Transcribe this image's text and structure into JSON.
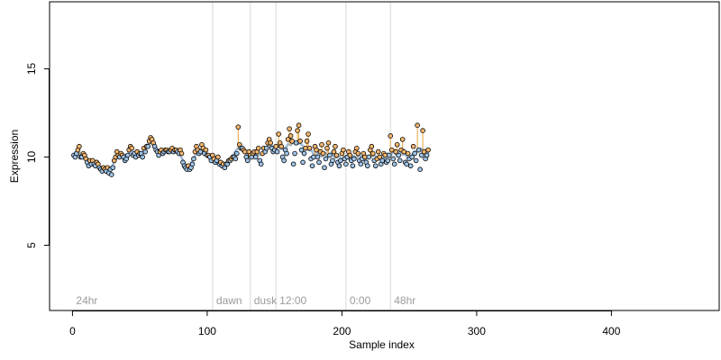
{
  "chart_data": {
    "type": "scatter",
    "title": "",
    "xlabel": "Sample index",
    "ylabel": "Expression",
    "xlim": [
      -17,
      480
    ],
    "ylim": [
      1.3,
      18.8
    ],
    "x_ticks": [
      0,
      100,
      200,
      300,
      400
    ],
    "y_ticks": [
      5,
      10,
      15
    ],
    "grid": false,
    "legend": "none",
    "colors": {
      "plot_border": "#000000",
      "region_line": "#d9d9d9",
      "region_label": "#9a9a9a",
      "fit_line": "#9db9d9",
      "residual_line": "#e8a33a",
      "point_above_fill": "#f2b56e",
      "point_below_fill": "#9fc3e6",
      "point_stroke": "#000000"
    },
    "regions": [
      {
        "x": 0,
        "label": "24hr",
        "show_line": false
      },
      {
        "x": 104,
        "label": "dawn",
        "show_line": true
      },
      {
        "x": 132,
        "label": "dusk",
        "show_line": true
      },
      {
        "x": 151,
        "label": "12:00",
        "show_line": true
      },
      {
        "x": 203,
        "label": "0:00",
        "show_line": true
      },
      {
        "x": 236,
        "label": "48hr",
        "show_line": true
      }
    ],
    "series": [
      {
        "values": [
          10.1,
          10.0,
          10.2,
          10.4,
          10.6,
          10.0,
          10.0,
          10.2,
          10.1,
          9.9,
          9.7,
          9.5,
          9.8,
          9.6,
          9.8,
          9.6,
          9.5,
          9.7,
          9.6,
          9.4,
          9.3,
          9.2,
          9.4,
          9.3,
          9.2,
          9.4,
          9.1,
          9.3,
          9.0,
          9.4,
          9.8,
          10.0,
          10.3,
          10.1,
          10.0,
          10.2,
          10.1,
          10.0,
          9.8,
          9.9,
          10.1,
          10.4,
          10.6,
          10.5,
          10.1,
          10.2,
          10.0,
          10.3,
          10.1,
          10.2,
          10.2,
          10.0,
          10.5,
          10.3,
          10.6,
          10.6,
          10.9,
          11.1,
          11.0,
          10.8,
          10.6,
          10.4,
          10.3,
          10.1,
          10.3,
          10.4,
          10.2,
          10.3,
          10.4,
          10.4,
          10.3,
          10.3,
          10.4,
          10.5,
          10.3,
          10.4,
          10.4,
          10.3,
          10.2,
          10.4,
          10.2,
          9.7,
          9.5,
          9.4,
          9.3,
          9.5,
          9.3,
          9.4,
          9.6,
          9.9,
          10.3,
          10.6,
          10.4,
          10.2,
          10.3,
          10.7,
          10.5,
          10.2,
          10.4,
          10.1,
          10.1,
          10.0,
          9.8,
          10.1,
          9.9,
          9.7,
          9.8,
          10.0,
          9.6,
          9.7,
          9.5,
          9.6,
          9.4,
          9.6,
          9.6,
          9.8,
          9.8,
          9.9,
          10.0,
          10.0,
          9.9,
          10.2,
          11.7,
          10.7,
          10.5,
          10.5,
          10.4,
          10.3,
          10.0,
          9.8,
          10.3,
          10.1,
          10.0,
          10.2,
          10.3,
          10.0,
          10.3,
          10.5,
          9.8,
          9.6,
          10.2,
          10.5,
          10.3,
          10.5,
          10.8,
          11.0,
          10.8,
          10.5,
          10.3,
          10.4,
          10.6,
          10.3,
          11.3,
          10.8,
          10.6,
          10.0,
          9.8,
          10.4,
          10.2,
          11.0,
          11.6,
          11.2,
          10.9,
          9.6,
          10.2,
          10.8,
          11.5,
          11.8,
          10.9,
          10.4,
          9.7,
          10.2,
          10.5,
          10.9,
          11.3,
          10.5,
          9.9,
          9.5,
          10.0,
          10.6,
          10.4,
          10.0,
          9.7,
          10.3,
          10.7,
          10.2,
          9.4,
          9.9,
          10.5,
          10.8,
          10.1,
          9.6,
          9.8,
          10.3,
          10.6,
          10.1,
          9.7,
          9.5,
          9.8,
          10.2,
          10.4,
          9.9,
          9.6,
          10.0,
          10.3,
          10.1,
          9.8,
          9.5,
          9.9,
          10.3,
          10.5,
          10.2,
          9.8,
          9.6,
          9.9,
          10.2,
          10.0,
          9.7,
          9.5,
          10.0,
          10.4,
          10.6,
          10.2,
          9.8,
          9.5,
          9.9,
          10.3,
          10.0,
          9.6,
          9.8,
          10.2,
          10.1,
          9.7,
          9.8,
          10.1,
          11.2,
          10.4,
          9.9,
          9.6,
          10.3,
          10.7,
          10.1,
          9.8,
          10.4,
          11.0,
          10.3,
          9.7,
          9.6,
          10.2,
          9.9,
          9.5,
          10.0,
          10.6,
          10.2,
          9.8,
          11.8,
          10.4,
          9.3,
          10.1,
          11.5,
          10.3,
          9.9,
          10.1,
          10.4
        ]
      }
    ]
  }
}
